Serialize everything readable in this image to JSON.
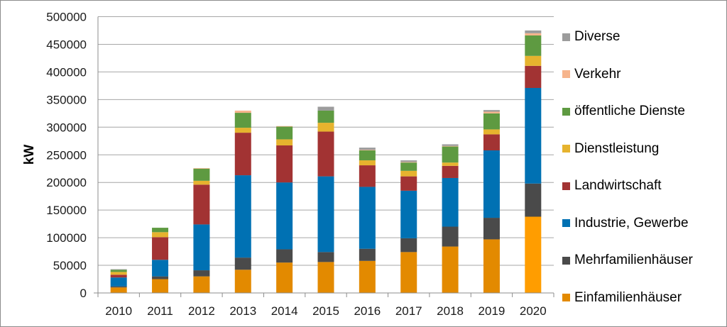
{
  "chart_data": {
    "type": "bar",
    "stacked": true,
    "title": "",
    "xlabel": "",
    "ylabel": "kW",
    "ylim": [
      0,
      500000
    ],
    "yticks": [
      0,
      50000,
      100000,
      150000,
      200000,
      250000,
      300000,
      350000,
      400000,
      450000,
      500000
    ],
    "ytick_labels": [
      "0",
      "50000",
      "100000",
      "150000",
      "200000",
      "250000",
      "300000",
      "350000",
      "400000",
      "450000",
      "500000"
    ],
    "grid": true,
    "legend_position": "right",
    "categories": [
      "2010",
      "2011",
      "2012",
      "2013",
      "2014",
      "2015",
      "2016",
      "2017",
      "2018",
      "2019",
      "2020"
    ],
    "series": [
      {
        "name": "Einfamilienhäuser",
        "color": "#e38a00",
        "values": [
          10000,
          25000,
          30000,
          42000,
          55000,
          56000,
          58000,
          74000,
          84000,
          97000,
          138000
        ]
      },
      {
        "name": "Mehrfamilienhäuser",
        "color": "#4a4a4a",
        "values": [
          2000,
          5000,
          11000,
          22000,
          24000,
          18000,
          22000,
          25000,
          36000,
          39000,
          60000
        ]
      },
      {
        "name": "Industrie, Gewerbe",
        "color": "#0071b3",
        "values": [
          16000,
          30000,
          83000,
          149000,
          121000,
          137000,
          112000,
          86000,
          88000,
          122000,
          173000
        ]
      },
      {
        "name": "Landwirtschaft",
        "color": "#a23333",
        "values": [
          5000,
          41000,
          72000,
          77000,
          67000,
          81000,
          39000,
          26000,
          22000,
          29000,
          40000
        ]
      },
      {
        "name": "Dienstleistung",
        "color": "#e6b32e",
        "values": [
          5000,
          9000,
          7000,
          9000,
          11000,
          16000,
          9000,
          10000,
          6000,
          9000,
          18000
        ]
      },
      {
        "name": "öffentliche Dienste",
        "color": "#5e9a41",
        "values": [
          4000,
          8000,
          22000,
          27000,
          23000,
          22000,
          18000,
          15000,
          29000,
          29000,
          37000
        ]
      },
      {
        "name": "Verkehr",
        "color": "#f6b48c",
        "values": [
          0,
          0,
          1000,
          4000,
          1000,
          0,
          1000,
          1000,
          1000,
          3000,
          4000
        ]
      },
      {
        "name": "Diverse",
        "color": "#9c9c9c",
        "values": [
          1000,
          0,
          0,
          0,
          0,
          7000,
          4000,
          3000,
          3000,
          3000,
          5000
        ]
      }
    ],
    "highlight": {
      "category": "2020",
      "series": "Einfamilienhäuser",
      "color": "#ff9d00"
    }
  }
}
